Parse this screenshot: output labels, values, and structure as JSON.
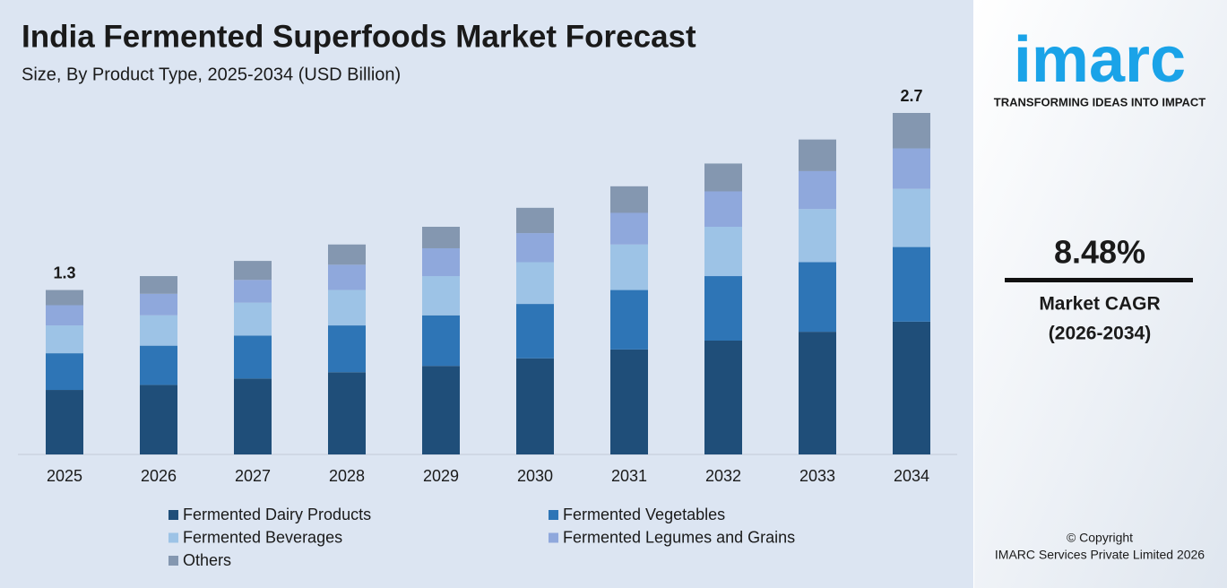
{
  "chart_data": {
    "type": "stacked_bar",
    "title": "India Fermented Superfoods Market Forecast",
    "subtitle": "Size, By Product Type, 2025-2034 (USD Billion)",
    "categories": [
      "2025",
      "2026",
      "2027",
      "2028",
      "2029",
      "2030",
      "2031",
      "2032",
      "2033",
      "2034"
    ],
    "series": [
      {
        "name": "Fermented Dairy Products",
        "color": "#1f4e79",
        "values": [
          0.51,
          0.55,
          0.6,
          0.65,
          0.7,
          0.76,
          0.83,
          0.9,
          0.97,
          1.05
        ]
      },
      {
        "name": "Fermented Vegetables",
        "color": "#2e75b6",
        "values": [
          0.29,
          0.31,
          0.34,
          0.37,
          0.4,
          0.43,
          0.47,
          0.51,
          0.55,
          0.59
        ]
      },
      {
        "name": "Fermented Beverages",
        "color": "#9dc3e6",
        "values": [
          0.22,
          0.24,
          0.26,
          0.28,
          0.31,
          0.33,
          0.36,
          0.39,
          0.42,
          0.46
        ]
      },
      {
        "name": "Fermented Legumes and Grains",
        "color": "#8fa8dc",
        "values": [
          0.16,
          0.17,
          0.18,
          0.2,
          0.22,
          0.23,
          0.25,
          0.28,
          0.3,
          0.32
        ]
      },
      {
        "name": "Others",
        "color": "#8497b0",
        "values": [
          0.12,
          0.14,
          0.15,
          0.16,
          0.17,
          0.2,
          0.21,
          0.22,
          0.25,
          0.28
        ]
      }
    ],
    "totals": [
      1.3,
      null,
      null,
      null,
      null,
      null,
      null,
      null,
      null,
      2.7
    ]
  },
  "side_panel": {
    "logo": "imarc",
    "tagline": "TRANSFORMING IDEAS INTO IMPACT",
    "cagr": "8.48%",
    "cagr_label": "Market CAGR",
    "cagr_period": "(2026-2034)",
    "copyright": "© Copyright",
    "company": "IMARC Services Private Limited 2026"
  }
}
